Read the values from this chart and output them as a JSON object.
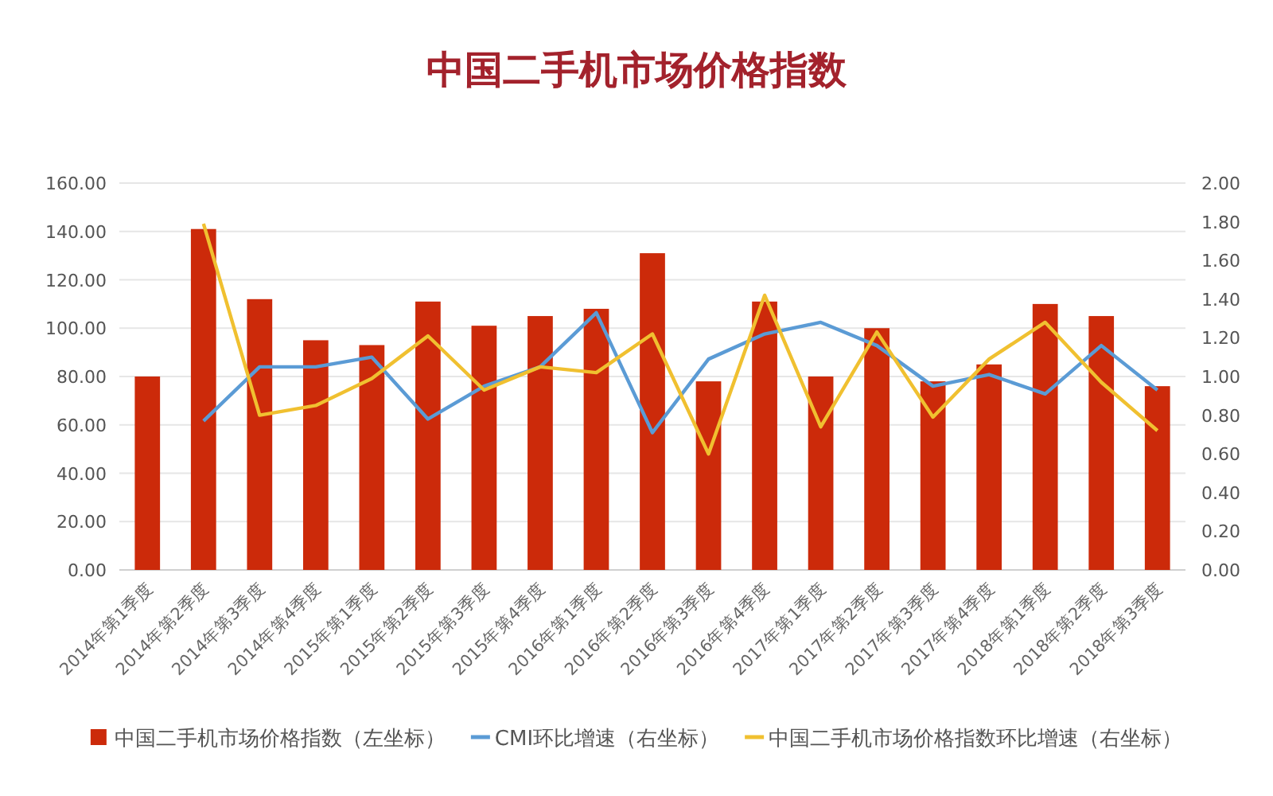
{
  "chart_data": {
    "type": "bar",
    "title": "中国二手机市场价格指数",
    "categories": [
      "2014年第1季度",
      "2014年第2季度",
      "2014年第3季度",
      "2014年第4季度",
      "2015年第1季度",
      "2015年第2季度",
      "2015年第3季度",
      "2015年第4季度",
      "2016年第1季度",
      "2016年第2季度",
      "2016年第3季度",
      "2016年第4季度",
      "2017年第1季度",
      "2017年第2季度",
      "2017年第3季度",
      "2017年第4季度",
      "2018年第1季度",
      "2018年第2季度",
      "2018年第3季度"
    ],
    "series": [
      {
        "name": "中国二手机市场价格指数（左坐标）",
        "color": "#cc2a0a",
        "values": [
          80,
          141,
          112,
          95,
          93,
          111,
          101,
          105,
          108,
          131,
          78,
          111,
          80,
          100,
          78,
          85,
          110,
          105,
          76
        ]
      },
      {
        "name": "CMI环比增速（右坐标）",
        "type": "line",
        "axis": "y2",
        "color": "#5b9bd5",
        "values": [
          null,
          0.77,
          1.05,
          1.05,
          1.1,
          0.78,
          0.95,
          1.05,
          1.33,
          0.71,
          1.09,
          1.22,
          1.28,
          1.16,
          0.95,
          1.01,
          0.91,
          1.16,
          0.93
        ]
      },
      {
        "name": "中国二手机市场价格指数环比增速（右坐标）",
        "type": "line",
        "axis": "y2",
        "color": "#f0c030",
        "values": [
          null,
          1.79,
          0.8,
          0.85,
          0.99,
          1.21,
          0.93,
          1.05,
          1.02,
          1.22,
          0.6,
          1.42,
          0.74,
          1.23,
          0.79,
          1.09,
          1.28,
          0.97,
          0.72
        ]
      }
    ],
    "ylim": [
      0,
      160
    ],
    "yticks": [
      {
        "value": 0,
        "label": "0.00"
      },
      {
        "value": 20,
        "label": "20.00"
      },
      {
        "value": 40,
        "label": "40.00"
      },
      {
        "value": 60,
        "label": "60.00"
      },
      {
        "value": 80,
        "label": "80.00"
      },
      {
        "value": 100,
        "label": "100.00"
      },
      {
        "value": 120,
        "label": "120.00"
      },
      {
        "value": 140,
        "label": "140.00"
      },
      {
        "value": 160,
        "label": "160.00"
      }
    ],
    "y2lim": [
      0,
      2
    ],
    "y2ticks": [
      {
        "value": 0,
        "label": "0.00"
      },
      {
        "value": 0.2,
        "label": "0.20"
      },
      {
        "value": 0.4,
        "label": "0.40"
      },
      {
        "value": 0.6,
        "label": "0.60"
      },
      {
        "value": 0.8,
        "label": "0.80"
      },
      {
        "value": 1,
        "label": "1.00"
      },
      {
        "value": 1.2,
        "label": "1.20"
      },
      {
        "value": 1.4,
        "label": "1.40"
      },
      {
        "value": 1.6,
        "label": "1.60"
      },
      {
        "value": 1.8,
        "label": "1.80"
      },
      {
        "value": 2,
        "label": "2.00"
      }
    ],
    "grid": "y",
    "legend": "bottom"
  }
}
